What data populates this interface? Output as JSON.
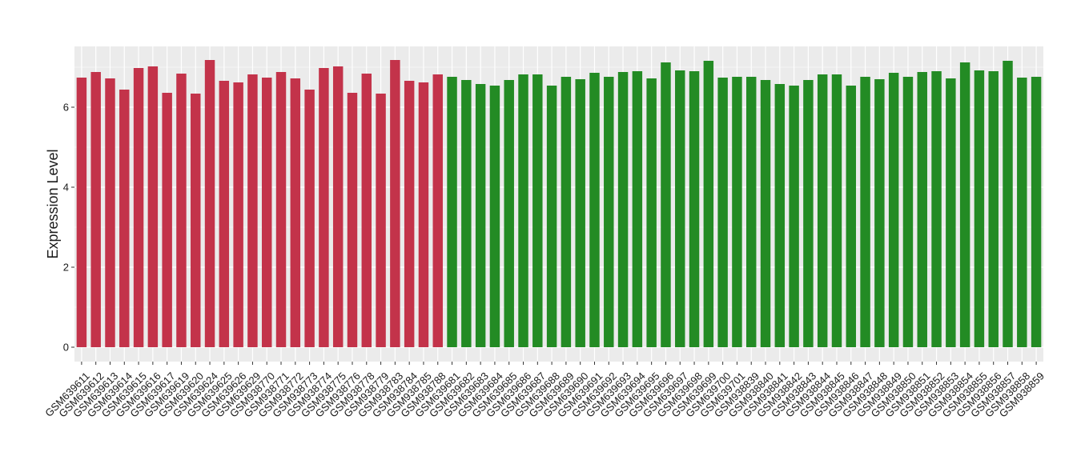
{
  "chart_data": {
    "type": "bar",
    "y_label": "Expression Level",
    "categories": [
      "GSM639611",
      "GSM639612",
      "GSM639613",
      "GSM639614",
      "GSM639615",
      "GSM639616",
      "GSM639617",
      "GSM639619",
      "GSM639620",
      "GSM639624",
      "GSM639625",
      "GSM639626",
      "GSM639629",
      "GSM938770",
      "GSM938771",
      "GSM938772",
      "GSM938773",
      "GSM938774",
      "GSM938775",
      "GSM938776",
      "GSM938778",
      "GSM938779",
      "GSM938783",
      "GSM938784",
      "GSM938785",
      "GSM938788",
      "GSM639681",
      "GSM639682",
      "GSM639683",
      "GSM639684",
      "GSM639685",
      "GSM639686",
      "GSM639687",
      "GSM639688",
      "GSM639689",
      "GSM639690",
      "GSM639691",
      "GSM639692",
      "GSM639693",
      "GSM639694",
      "GSM639695",
      "GSM639696",
      "GSM639697",
      "GSM639698",
      "GSM639699",
      "GSM639700",
      "GSM639701",
      "GSM938839",
      "GSM938840",
      "GSM938841",
      "GSM938842",
      "GSM938843",
      "GSM938844",
      "GSM938845",
      "GSM938846",
      "GSM938847",
      "GSM938848",
      "GSM938849",
      "GSM938850",
      "GSM938851",
      "GSM938852",
      "GSM938853",
      "GSM938854",
      "GSM938855",
      "GSM938856",
      "GSM938857",
      "GSM938858",
      "GSM938859"
    ],
    "values": [
      6.74,
      6.88,
      6.72,
      6.44,
      6.98,
      7.02,
      6.36,
      6.84,
      6.34,
      7.18,
      6.66,
      6.62,
      6.82,
      6.74,
      6.88,
      6.72,
      6.44,
      6.98,
      7.02,
      6.36,
      6.84,
      6.34,
      7.18,
      6.66,
      6.62,
      6.82,
      6.76,
      6.68,
      6.58,
      6.54,
      6.68,
      6.82,
      6.82,
      6.54,
      6.76,
      6.7,
      6.86,
      6.76,
      6.88,
      6.9,
      6.72,
      7.12,
      6.92,
      6.9,
      7.16,
      6.74,
      6.76,
      6.76,
      6.68,
      6.58,
      6.54,
      6.68,
      6.82,
      6.82,
      6.54,
      6.76,
      6.7,
      6.86,
      6.76,
      6.88,
      6.9,
      6.72,
      7.12,
      6.92,
      6.9,
      7.16,
      6.74,
      6.76
    ],
    "colors": [
      "#c3334a",
      "#c3334a",
      "#c3334a",
      "#c3334a",
      "#c3334a",
      "#c3334a",
      "#c3334a",
      "#c3334a",
      "#c3334a",
      "#c3334a",
      "#c3334a",
      "#c3334a",
      "#c3334a",
      "#c3334a",
      "#c3334a",
      "#c3334a",
      "#c3334a",
      "#c3334a",
      "#c3334a",
      "#c3334a",
      "#c3334a",
      "#c3334a",
      "#c3334a",
      "#c3334a",
      "#c3334a",
      "#c3334a",
      "#238b24",
      "#238b24",
      "#238b24",
      "#238b24",
      "#238b24",
      "#238b24",
      "#238b24",
      "#238b24",
      "#238b24",
      "#238b24",
      "#238b24",
      "#238b24",
      "#238b24",
      "#238b24",
      "#238b24",
      "#238b24",
      "#238b24",
      "#238b24",
      "#238b24",
      "#238b24",
      "#238b24",
      "#238b24",
      "#238b24",
      "#238b24",
      "#238b24",
      "#238b24",
      "#238b24",
      "#238b24",
      "#238b24",
      "#238b24",
      "#238b24",
      "#238b24",
      "#238b24",
      "#238b24",
      "#238b24",
      "#238b24",
      "#238b24",
      "#238b24",
      "#238b24",
      "#238b24",
      "#238b24",
      "#238b24"
    ],
    "ylim": [
      -0.36,
      7.52
    ],
    "yticks": [
      0,
      2,
      4,
      6
    ],
    "minor_yticks": [
      1,
      3,
      5,
      7
    ],
    "grid": true
  }
}
